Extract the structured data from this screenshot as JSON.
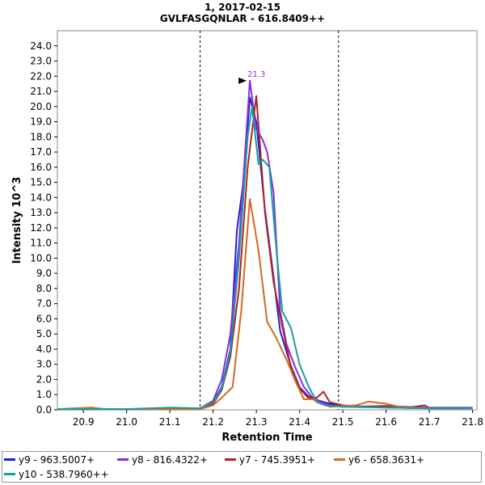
{
  "header": {
    "line1": "1, 2017-02-15",
    "line2": "GVLFASGQNLAR - 616.8409++"
  },
  "chart_data": {
    "type": "line",
    "xlabel": "Retention Time",
    "ylabel": "Intensity 10^3",
    "xlim": [
      20.84,
      21.81
    ],
    "ylim": [
      0,
      25
    ],
    "xticks": [
      "20.9",
      "21.0",
      "21.1",
      "21.2",
      "21.3",
      "21.4",
      "21.5",
      "21.6",
      "21.7",
      "21.8"
    ],
    "yticks": [
      "0.0",
      "1.0",
      "2.0",
      "3.0",
      "4.0",
      "5.0",
      "6.0",
      "7.0",
      "8.0",
      "9.0",
      "10.0",
      "11.0",
      "12.0",
      "13.0",
      "14.0",
      "15.0",
      "16.0",
      "17.0",
      "18.0",
      "19.0",
      "20.0",
      "21.0",
      "22.0",
      "23.0",
      "24.0"
    ],
    "vlines": [
      21.17,
      21.49
    ],
    "peak_annotation": {
      "label": "21.3",
      "x": 21.285,
      "y": 21.7
    },
    "series": [
      {
        "name": "y9 - 963.5007+",
        "color": "#1f1fd6",
        "points": [
          [
            20.84,
            0.05
          ],
          [
            20.9,
            0.05
          ],
          [
            21.0,
            0.05
          ],
          [
            21.1,
            0.05
          ],
          [
            21.17,
            0.1
          ],
          [
            21.2,
            0.5
          ],
          [
            21.22,
            1.5
          ],
          [
            21.24,
            4.0
          ],
          [
            21.255,
            11.8
          ],
          [
            21.27,
            15.0
          ],
          [
            21.285,
            20.6
          ],
          [
            21.3,
            19.0
          ],
          [
            21.32,
            13.2
          ],
          [
            21.34,
            8.7
          ],
          [
            21.355,
            5.2
          ],
          [
            21.38,
            2.9
          ],
          [
            21.4,
            1.5
          ],
          [
            21.42,
            0.9
          ],
          [
            21.445,
            0.6
          ],
          [
            21.47,
            0.4
          ],
          [
            21.5,
            0.25
          ],
          [
            21.55,
            0.2
          ],
          [
            21.6,
            0.15
          ],
          [
            21.7,
            0.1
          ],
          [
            21.8,
            0.1
          ]
        ]
      },
      {
        "name": "y8 - 816.4322+",
        "color": "#8a2be2",
        "points": [
          [
            20.84,
            0.05
          ],
          [
            20.9,
            0.05
          ],
          [
            21.0,
            0.05
          ],
          [
            21.1,
            0.05
          ],
          [
            21.17,
            0.1
          ],
          [
            21.2,
            0.6
          ],
          [
            21.22,
            2.0
          ],
          [
            21.24,
            5.0
          ],
          [
            21.26,
            11.0
          ],
          [
            21.285,
            21.7
          ],
          [
            21.3,
            18.5
          ],
          [
            21.315,
            17.8
          ],
          [
            21.325,
            17.0
          ],
          [
            21.34,
            14.3
          ],
          [
            21.355,
            6.5
          ],
          [
            21.37,
            4.3
          ],
          [
            21.39,
            2.8
          ],
          [
            21.41,
            1.5
          ],
          [
            21.43,
            0.8
          ],
          [
            21.45,
            0.5
          ],
          [
            21.47,
            0.3
          ],
          [
            21.5,
            0.2
          ],
          [
            21.6,
            0.25
          ],
          [
            21.65,
            0.2
          ],
          [
            21.7,
            0.15
          ],
          [
            21.8,
            0.15
          ]
        ]
      },
      {
        "name": "y7 - 745.3951+",
        "color": "#b22222",
        "points": [
          [
            20.84,
            0.05
          ],
          [
            20.9,
            0.05
          ],
          [
            21.0,
            0.05
          ],
          [
            21.1,
            0.05
          ],
          [
            21.17,
            0.05
          ],
          [
            21.2,
            0.4
          ],
          [
            21.22,
            1.3
          ],
          [
            21.24,
            3.5
          ],
          [
            21.26,
            8.0
          ],
          [
            21.28,
            16.0
          ],
          [
            21.3,
            20.7
          ],
          [
            21.32,
            13.0
          ],
          [
            21.34,
            8.4
          ],
          [
            21.36,
            5.5
          ],
          [
            21.38,
            2.8
          ],
          [
            21.4,
            1.4
          ],
          [
            21.42,
            0.8
          ],
          [
            21.44,
            0.8
          ],
          [
            21.455,
            1.2
          ],
          [
            21.47,
            0.5
          ],
          [
            21.5,
            0.3
          ],
          [
            21.55,
            0.2
          ],
          [
            21.6,
            0.25
          ],
          [
            21.65,
            0.15
          ],
          [
            21.69,
            0.3
          ],
          [
            21.7,
            0.1
          ],
          [
            21.8,
            0.1
          ]
        ]
      },
      {
        "name": "y6 - 658.3631+",
        "color": "#d2691e",
        "points": [
          [
            20.84,
            0.05
          ],
          [
            20.88,
            0.1
          ],
          [
            20.92,
            0.15
          ],
          [
            20.95,
            0.05
          ],
          [
            21.0,
            0.05
          ],
          [
            21.1,
            0.05
          ],
          [
            21.17,
            0.05
          ],
          [
            21.2,
            0.3
          ],
          [
            21.22,
            0.8
          ],
          [
            21.245,
            1.5
          ],
          [
            21.265,
            6.5
          ],
          [
            21.285,
            13.9
          ],
          [
            21.305,
            10.5
          ],
          [
            21.325,
            5.8
          ],
          [
            21.345,
            4.8
          ],
          [
            21.37,
            3.3
          ],
          [
            21.39,
            1.9
          ],
          [
            21.41,
            0.7
          ],
          [
            21.43,
            0.7
          ],
          [
            21.45,
            0.4
          ],
          [
            21.47,
            0.2
          ],
          [
            21.5,
            0.25
          ],
          [
            21.53,
            0.3
          ],
          [
            21.56,
            0.55
          ],
          [
            21.6,
            0.4
          ],
          [
            21.63,
            0.2
          ],
          [
            21.7,
            0.1
          ],
          [
            21.8,
            0.1
          ]
        ]
      },
      {
        "name": "y10 - 538.7960++",
        "color": "#13a0a0",
        "points": [
          [
            20.84,
            0.05
          ],
          [
            20.9,
            0.05
          ],
          [
            21.0,
            0.05
          ],
          [
            21.05,
            0.1
          ],
          [
            21.1,
            0.15
          ],
          [
            21.17,
            0.1
          ],
          [
            21.2,
            0.5
          ],
          [
            21.22,
            1.4
          ],
          [
            21.24,
            3.8
          ],
          [
            21.26,
            10.0
          ],
          [
            21.28,
            18.0
          ],
          [
            21.29,
            20.0
          ],
          [
            21.305,
            16.2
          ],
          [
            21.315,
            16.5
          ],
          [
            21.33,
            16.0
          ],
          [
            21.345,
            11.0
          ],
          [
            21.36,
            6.5
          ],
          [
            21.38,
            5.4
          ],
          [
            21.4,
            3.0
          ],
          [
            21.42,
            1.6
          ],
          [
            21.44,
            0.5
          ],
          [
            21.46,
            0.3
          ],
          [
            21.5,
            0.2
          ],
          [
            21.6,
            0.15
          ],
          [
            21.7,
            0.1
          ],
          [
            21.8,
            0.1
          ]
        ]
      }
    ]
  }
}
